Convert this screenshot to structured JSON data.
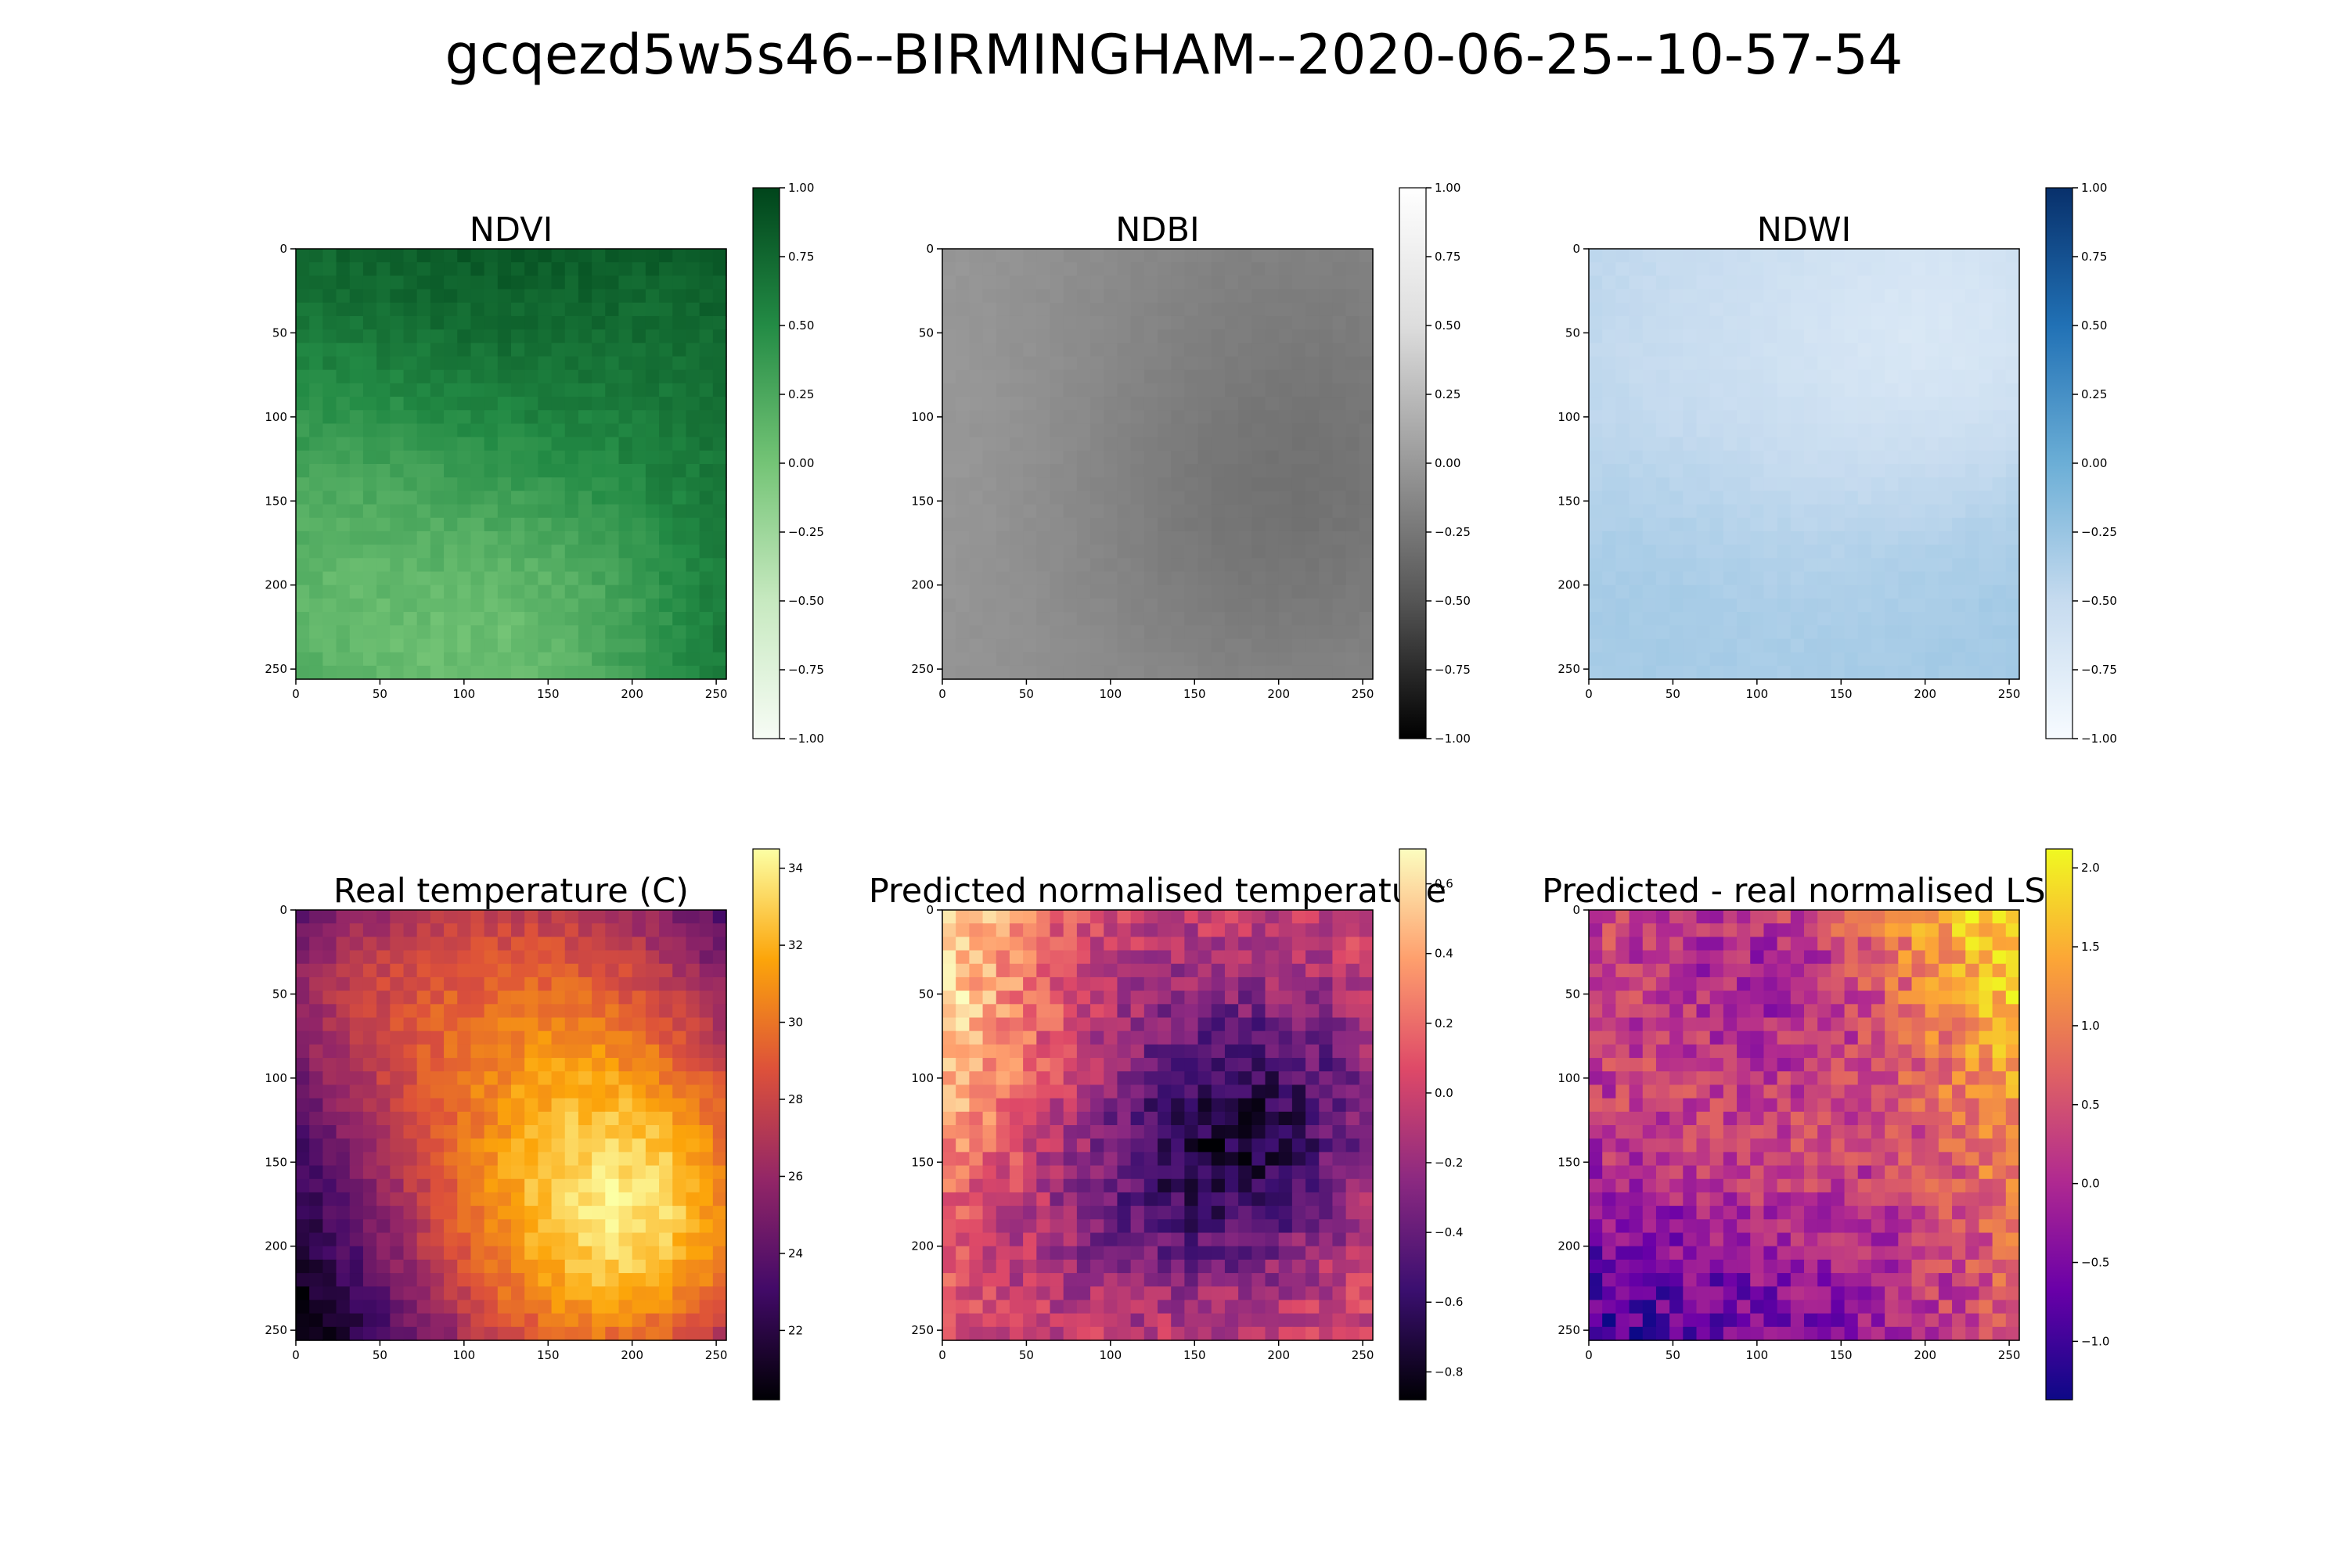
{
  "figure": {
    "title": "gcqezd5w5s46--BIRMINGHAM--2020-06-25--10-57-54"
  },
  "chart_data": [
    {
      "type": "heatmap",
      "title": "NDVI",
      "colormap": "Greens",
      "colors": [
        "#f7fcf5",
        "#c7e9c0",
        "#74c476",
        "#238b45",
        "#00441b"
      ],
      "x_ticks": [
        "0",
        "50",
        "100",
        "150",
        "200",
        "250"
      ],
      "y_ticks": [
        "0",
        "50",
        "100",
        "150",
        "200",
        "250"
      ],
      "xlim": [
        0,
        256
      ],
      "ylim": [
        256,
        0
      ],
      "colorbar": {
        "range": [
          -1.0,
          1.0
        ],
        "ticks": [
          "1.00",
          "0.75",
          "0.50",
          "0.25",
          "0.00",
          "−0.25",
          "−0.50",
          "−0.75",
          "−1.00"
        ]
      },
      "value_range_shown": [
        0.0,
        0.9
      ]
    },
    {
      "type": "heatmap",
      "title": "NDBI",
      "colormap": "Greys_r",
      "colors": [
        "#000000",
        "#555555",
        "#999999",
        "#dddddd",
        "#ffffff"
      ],
      "x_ticks": [
        "0",
        "50",
        "100",
        "150",
        "200",
        "250"
      ],
      "y_ticks": [
        "0",
        "50",
        "100",
        "150",
        "200",
        "250"
      ],
      "xlim": [
        0,
        256
      ],
      "ylim": [
        256,
        0
      ],
      "colorbar": {
        "range": [
          -1.0,
          1.0
        ],
        "ticks": [
          "1.00",
          "0.75",
          "0.50",
          "0.25",
          "0.00",
          "−0.25",
          "−0.50",
          "−0.75",
          "−1.00"
        ]
      },
      "value_range_shown": [
        -0.3,
        0.0
      ]
    },
    {
      "type": "heatmap",
      "title": "NDWI",
      "colormap": "Blues",
      "colors": [
        "#f7fbff",
        "#c6dbef",
        "#6baed6",
        "#2171b5",
        "#08306b"
      ],
      "x_ticks": [
        "0",
        "50",
        "100",
        "150",
        "200",
        "250"
      ],
      "y_ticks": [
        "0",
        "50",
        "100",
        "150",
        "200",
        "250"
      ],
      "xlim": [
        0,
        256
      ],
      "ylim": [
        256,
        0
      ],
      "colorbar": {
        "range": [
          -1.0,
          1.0
        ],
        "ticks": [
          "1.00",
          "0.75",
          "0.50",
          "0.25",
          "0.00",
          "−0.25",
          "−0.50",
          "−0.75",
          "−1.00"
        ]
      },
      "value_range_shown": [
        -0.7,
        -0.3
      ]
    },
    {
      "type": "heatmap",
      "title": "Real temperature (C)",
      "colormap": "inferno",
      "colors": [
        "#000004",
        "#420a68",
        "#932667",
        "#dd513a",
        "#fca50a",
        "#fcffa4"
      ],
      "x_ticks": [
        "0",
        "50",
        "100",
        "150",
        "200",
        "250"
      ],
      "y_ticks": [
        "0",
        "50",
        "100",
        "150",
        "200",
        "250"
      ],
      "xlim": [
        0,
        256
      ],
      "ylim": [
        256,
        0
      ],
      "colorbar": {
        "range": [
          20.2,
          34.5
        ],
        "ticks": [
          "34",
          "32",
          "30",
          "28",
          "26",
          "24",
          "22"
        ]
      },
      "value_range_shown": [
        20.2,
        34.5
      ]
    },
    {
      "type": "heatmap",
      "title": "Predicted normalised temperature",
      "colormap": "magma",
      "colors": [
        "#000004",
        "#3b0f70",
        "#8c2981",
        "#de4968",
        "#fe9f6d",
        "#fcfdbf"
      ],
      "x_ticks": [
        "0",
        "50",
        "100",
        "150",
        "200",
        "250"
      ],
      "y_ticks": [
        "0",
        "50",
        "100",
        "150",
        "200",
        "250"
      ],
      "xlim": [
        0,
        256
      ],
      "ylim": [
        256,
        0
      ],
      "colorbar": {
        "range": [
          -0.88,
          0.7
        ],
        "ticks": [
          "0.6",
          "0.4",
          "0.2",
          "0.0",
          "−0.2",
          "−0.4",
          "−0.6",
          "−0.8"
        ]
      },
      "value_range_shown": [
        -0.88,
        0.7
      ]
    },
    {
      "type": "heatmap",
      "title": "Predicted - real normalised LST",
      "colormap": "plasma",
      "colors": [
        "#0d0887",
        "#6a00a8",
        "#b12a90",
        "#e16462",
        "#fca636",
        "#f0f921"
      ],
      "x_ticks": [
        "0",
        "50",
        "100",
        "150",
        "200",
        "250"
      ],
      "y_ticks": [
        "0",
        "50",
        "100",
        "150",
        "200",
        "250"
      ],
      "xlim": [
        0,
        256
      ],
      "ylim": [
        256,
        0
      ],
      "colorbar": {
        "range": [
          -1.37,
          2.12
        ],
        "ticks": [
          "2.0",
          "1.5",
          "1.0",
          "0.5",
          "0.0",
          "−0.5",
          "−1.0"
        ]
      },
      "value_range_shown": [
        -1.37,
        2.12
      ]
    }
  ]
}
